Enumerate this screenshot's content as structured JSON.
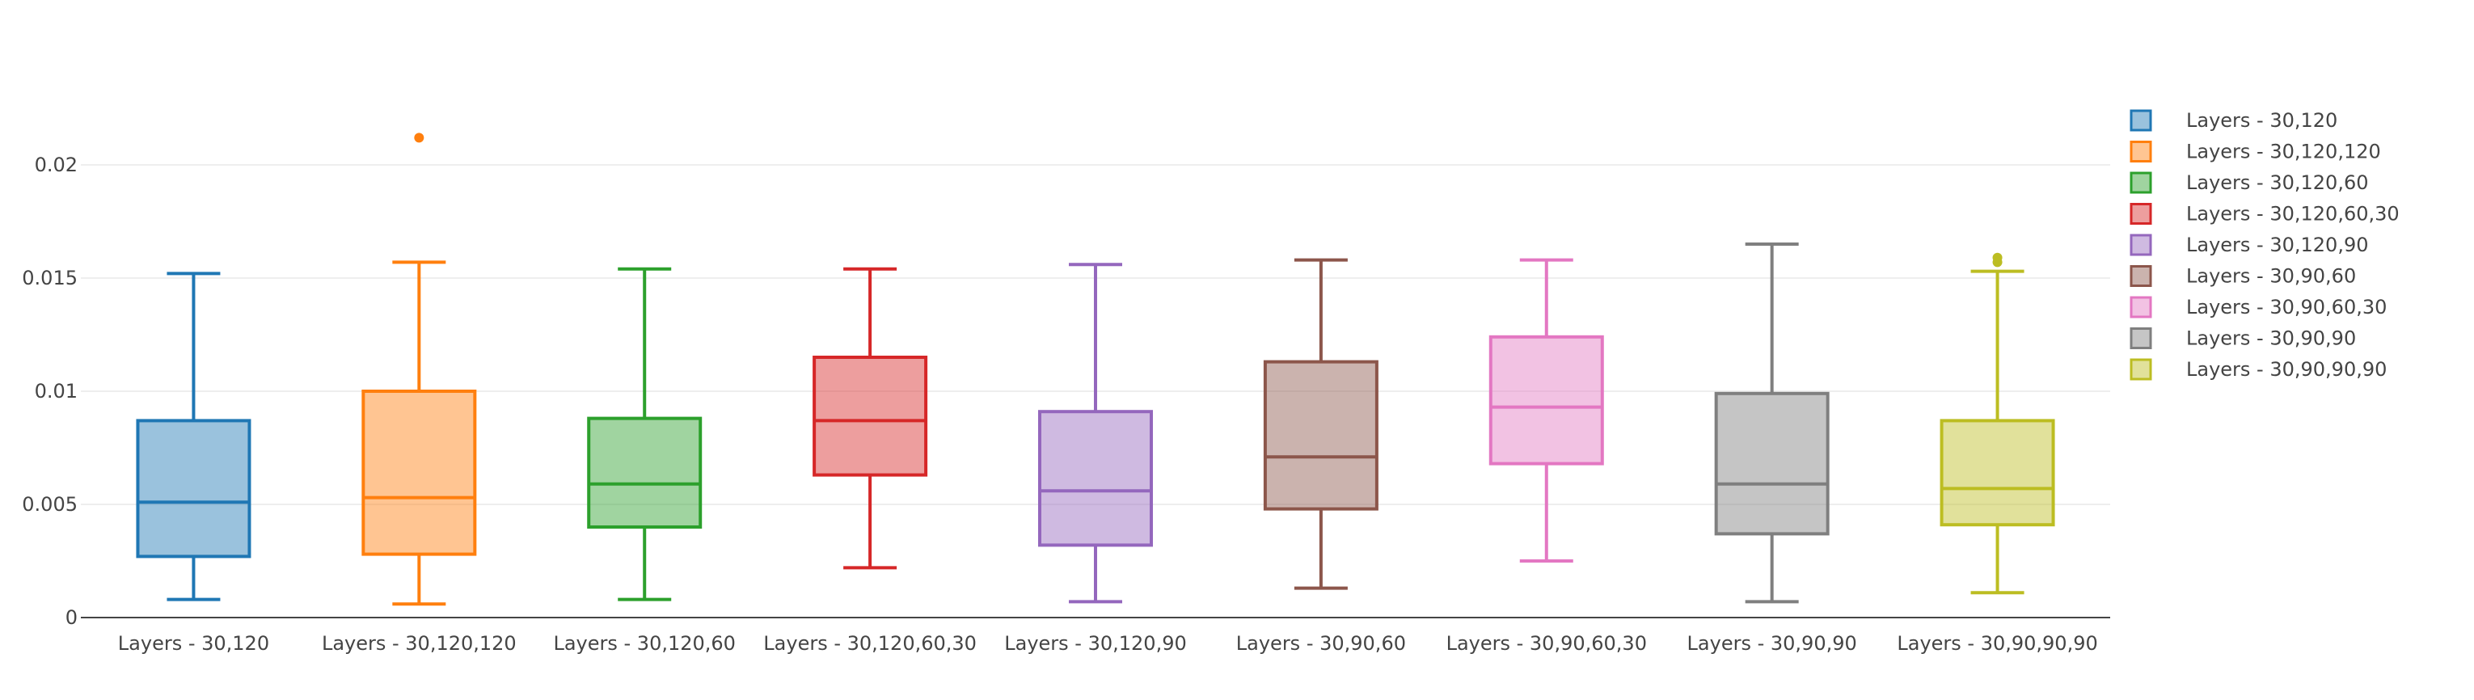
{
  "chart_data": {
    "type": "box",
    "title": "",
    "xlabel": "",
    "ylabel": "",
    "ylim": [
      0,
      0.023
    ],
    "y_ticks": [
      {
        "value": 0,
        "label": "0"
      },
      {
        "value": 0.005,
        "label": "0.005"
      },
      {
        "value": 0.01,
        "label": "0.01"
      },
      {
        "value": 0.015,
        "label": "0.015"
      },
      {
        "value": 0.02,
        "label": "0.02"
      }
    ],
    "grid": true,
    "legend_position": "right",
    "series": [
      {
        "name": "Layers - 30,120",
        "color": "#1f77b4",
        "min": 0.0008,
        "q1": 0.0027,
        "median": 0.0051,
        "q3": 0.0087,
        "max": 0.0152,
        "outliers": []
      },
      {
        "name": "Layers - 30,120,120",
        "color": "#ff7f0e",
        "min": 0.0006,
        "q1": 0.0028,
        "median": 0.0053,
        "q3": 0.01,
        "max": 0.0157,
        "outliers": [
          0.0212
        ]
      },
      {
        "name": "Layers - 30,120,60",
        "color": "#2ca02c",
        "min": 0.0008,
        "q1": 0.004,
        "median": 0.0059,
        "q3": 0.0088,
        "max": 0.0154,
        "outliers": []
      },
      {
        "name": "Layers - 30,120,60,30",
        "color": "#d62728",
        "min": 0.0022,
        "q1": 0.0063,
        "median": 0.0087,
        "q3": 0.0115,
        "max": 0.0154,
        "outliers": []
      },
      {
        "name": "Layers - 30,120,90",
        "color": "#9467bd",
        "min": 0.0007,
        "q1": 0.0032,
        "median": 0.0056,
        "q3": 0.0091,
        "max": 0.0156,
        "outliers": []
      },
      {
        "name": "Layers - 30,90,60",
        "color": "#8c564b",
        "min": 0.0013,
        "q1": 0.0048,
        "median": 0.0071,
        "q3": 0.0113,
        "max": 0.0158,
        "outliers": []
      },
      {
        "name": "Layers - 30,90,60,30",
        "color": "#e377c2",
        "min": 0.0025,
        "q1": 0.0068,
        "median": 0.0093,
        "q3": 0.0124,
        "max": 0.0158,
        "outliers": []
      },
      {
        "name": "Layers - 30,90,90",
        "color": "#7f7f7f",
        "min": 0.0007,
        "q1": 0.0037,
        "median": 0.0059,
        "q3": 0.0099,
        "max": 0.0165,
        "outliers": []
      },
      {
        "name": "Layers - 30,90,90,90",
        "color": "#bcbd22",
        "min": 0.0011,
        "q1": 0.0041,
        "median": 0.0057,
        "q3": 0.0087,
        "max": 0.0153,
        "outliers": [
          0.0157,
          0.0159
        ]
      }
    ]
  }
}
